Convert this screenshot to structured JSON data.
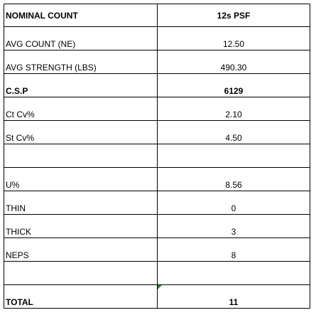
{
  "table": {
    "rows": [
      {
        "label": "NOMINAL COUNT",
        "value": "12s PSF",
        "bold": true
      },
      {
        "label": "AVG COUNT (NE)",
        "value": "12.50",
        "bold": false
      },
      {
        "label": "AVG STRENGTH (LBS)",
        "value": "490.30",
        "bold": false
      },
      {
        "label": "C.S.P",
        "value": "6129",
        "bold": true
      },
      {
        "label": "Ct Cv%",
        "value": "2.10",
        "bold": false
      },
      {
        "label": "St Cv%",
        "value": "4.50",
        "bold": false
      },
      {
        "label": "",
        "value": "",
        "bold": false
      },
      {
        "label": "U%",
        "value": "8.56",
        "bold": false
      },
      {
        "label": "THIN",
        "value": "0",
        "bold": false
      },
      {
        "label": "THICK",
        "value": "3",
        "bold": false
      },
      {
        "label": "NEPS",
        "value": "8",
        "bold": false
      },
      {
        "label": "",
        "value": "",
        "bold": false
      },
      {
        "label": "TOTAL",
        "value": "11",
        "bold": true
      }
    ]
  }
}
